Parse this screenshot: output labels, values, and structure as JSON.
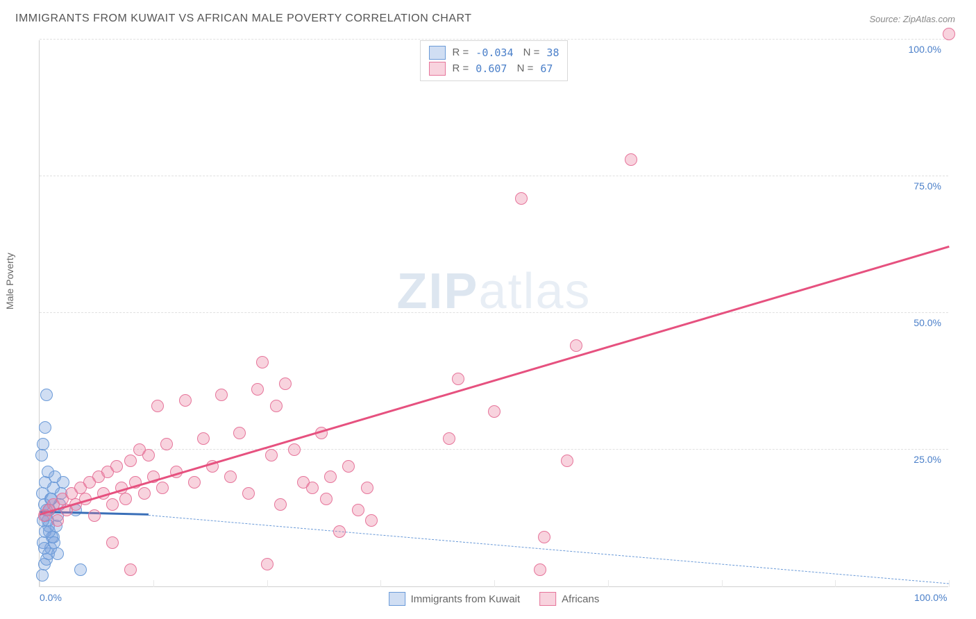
{
  "title": "IMMIGRANTS FROM KUWAIT VS AFRICAN MALE POVERTY CORRELATION CHART",
  "source": "Source: ZipAtlas.com",
  "ylabel": "Male Poverty",
  "watermark_zip": "ZIP",
  "watermark_atlas": "atlas",
  "chart": {
    "type": "scatter",
    "xlim": [
      0,
      100
    ],
    "ylim": [
      0,
      100
    ],
    "x_ticks": [
      0,
      12.5,
      25,
      37.5,
      50,
      62.5,
      75,
      87.5,
      100
    ],
    "x_tick_labels": {
      "0": "0.0%",
      "100": "100.0%"
    },
    "y_ticks": [
      25,
      50,
      75,
      100
    ],
    "y_tick_labels": {
      "25": "25.0%",
      "50": "50.0%",
      "75": "75.0%",
      "100": "100.0%"
    },
    "grid_color": "#e0e0e0",
    "background_color": "#ffffff",
    "marker_radius": 9,
    "series": [
      {
        "name": "Immigrants from Kuwait",
        "color_fill": "rgba(120,160,220,0.35)",
        "color_stroke": "#6a9ad8",
        "R": "-0.034",
        "N": "38",
        "trend": {
          "x1": 0,
          "y1": 13.5,
          "x2": 12,
          "y2": 13.0,
          "style": "solid",
          "color": "#3a6fb8",
          "width": 3
        },
        "trend_ext": {
          "x1": 12,
          "y1": 13.0,
          "x2": 100,
          "y2": 0.5,
          "style": "dashed",
          "color": "#6a9ad8",
          "width": 1.5
        },
        "points": [
          [
            0.3,
            2
          ],
          [
            0.5,
            4
          ],
          [
            0.8,
            5
          ],
          [
            1.0,
            6
          ],
          [
            1.2,
            7
          ],
          [
            0.4,
            8
          ],
          [
            1.5,
            9
          ],
          [
            0.6,
            10
          ],
          [
            1.8,
            11
          ],
          [
            0.9,
            12
          ],
          [
            2.0,
            13
          ],
          [
            1.1,
            14
          ],
          [
            2.2,
            15
          ],
          [
            1.3,
            16
          ],
          [
            2.4,
            17
          ],
          [
            1.5,
            18
          ],
          [
            2.6,
            19
          ],
          [
            1.7,
            20
          ],
          [
            0.5,
            15
          ],
          [
            0.7,
            13
          ],
          [
            1.0,
            11
          ],
          [
            1.4,
            9
          ],
          [
            0.3,
            17
          ],
          [
            0.6,
            19
          ],
          [
            0.9,
            21
          ],
          [
            1.2,
            16
          ],
          [
            0.4,
            12
          ],
          [
            0.8,
            14
          ],
          [
            1.1,
            10
          ],
          [
            1.6,
            8
          ],
          [
            2.0,
            6
          ],
          [
            0.5,
            7
          ],
          [
            0.2,
            24
          ],
          [
            0.4,
            26
          ],
          [
            0.6,
            29
          ],
          [
            0.8,
            35
          ],
          [
            4.5,
            3
          ],
          [
            4.0,
            14
          ]
        ]
      },
      {
        "name": "Africans",
        "color_fill": "rgba(235,130,160,0.35)",
        "color_stroke": "#e6749a",
        "R": "0.607",
        "N": "67",
        "trend": {
          "x1": 0,
          "y1": 13,
          "x2": 100,
          "y2": 62,
          "style": "solid",
          "color": "#e6517f",
          "width": 2.5
        },
        "points": [
          [
            0.5,
            13
          ],
          [
            1.0,
            14
          ],
          [
            1.5,
            15
          ],
          [
            2.0,
            12
          ],
          [
            2.5,
            16
          ],
          [
            3.0,
            14
          ],
          [
            3.5,
            17
          ],
          [
            4.0,
            15
          ],
          [
            4.5,
            18
          ],
          [
            5.0,
            16
          ],
          [
            5.5,
            19
          ],
          [
            6.0,
            13
          ],
          [
            6.5,
            20
          ],
          [
            7.0,
            17
          ],
          [
            7.5,
            21
          ],
          [
            8.0,
            15
          ],
          [
            8.5,
            22
          ],
          [
            9.0,
            18
          ],
          [
            9.5,
            16
          ],
          [
            10.0,
            23
          ],
          [
            10.5,
            19
          ],
          [
            11.0,
            25
          ],
          [
            11.5,
            17
          ],
          [
            12.0,
            24
          ],
          [
            12.5,
            20
          ],
          [
            13.0,
            33
          ],
          [
            13.5,
            18
          ],
          [
            14.0,
            26
          ],
          [
            15.0,
            21
          ],
          [
            16.0,
            34
          ],
          [
            17.0,
            19
          ],
          [
            18.0,
            27
          ],
          [
            19.0,
            22
          ],
          [
            20.0,
            35
          ],
          [
            21.0,
            20
          ],
          [
            22.0,
            28
          ],
          [
            23.0,
            17
          ],
          [
            24.0,
            36
          ],
          [
            24.5,
            41
          ],
          [
            25.0,
            4
          ],
          [
            25.5,
            24
          ],
          [
            26.0,
            33
          ],
          [
            26.5,
            15
          ],
          [
            27.0,
            37
          ],
          [
            28.0,
            25
          ],
          [
            29.0,
            19
          ],
          [
            30.0,
            18
          ],
          [
            31.0,
            28
          ],
          [
            31.5,
            16
          ],
          [
            32.0,
            20
          ],
          [
            33.0,
            10
          ],
          [
            34.0,
            22
          ],
          [
            35.0,
            14
          ],
          [
            36.0,
            18
          ],
          [
            36.5,
            12
          ],
          [
            45.0,
            27
          ],
          [
            46.0,
            38
          ],
          [
            50.0,
            32
          ],
          [
            53.0,
            71
          ],
          [
            55.0,
            3
          ],
          [
            55.5,
            9
          ],
          [
            58.0,
            23
          ],
          [
            59.0,
            44
          ],
          [
            65.0,
            78
          ],
          [
            8.0,
            8
          ],
          [
            10.0,
            3
          ],
          [
            100.0,
            101
          ]
        ]
      }
    ]
  },
  "legend_bottom": [
    {
      "swatch_fill": "rgba(120,160,220,0.35)",
      "swatch_stroke": "#6a9ad8",
      "label": "Immigrants from Kuwait"
    },
    {
      "swatch_fill": "rgba(235,130,160,0.35)",
      "swatch_stroke": "#e6749a",
      "label": "Africans"
    }
  ]
}
